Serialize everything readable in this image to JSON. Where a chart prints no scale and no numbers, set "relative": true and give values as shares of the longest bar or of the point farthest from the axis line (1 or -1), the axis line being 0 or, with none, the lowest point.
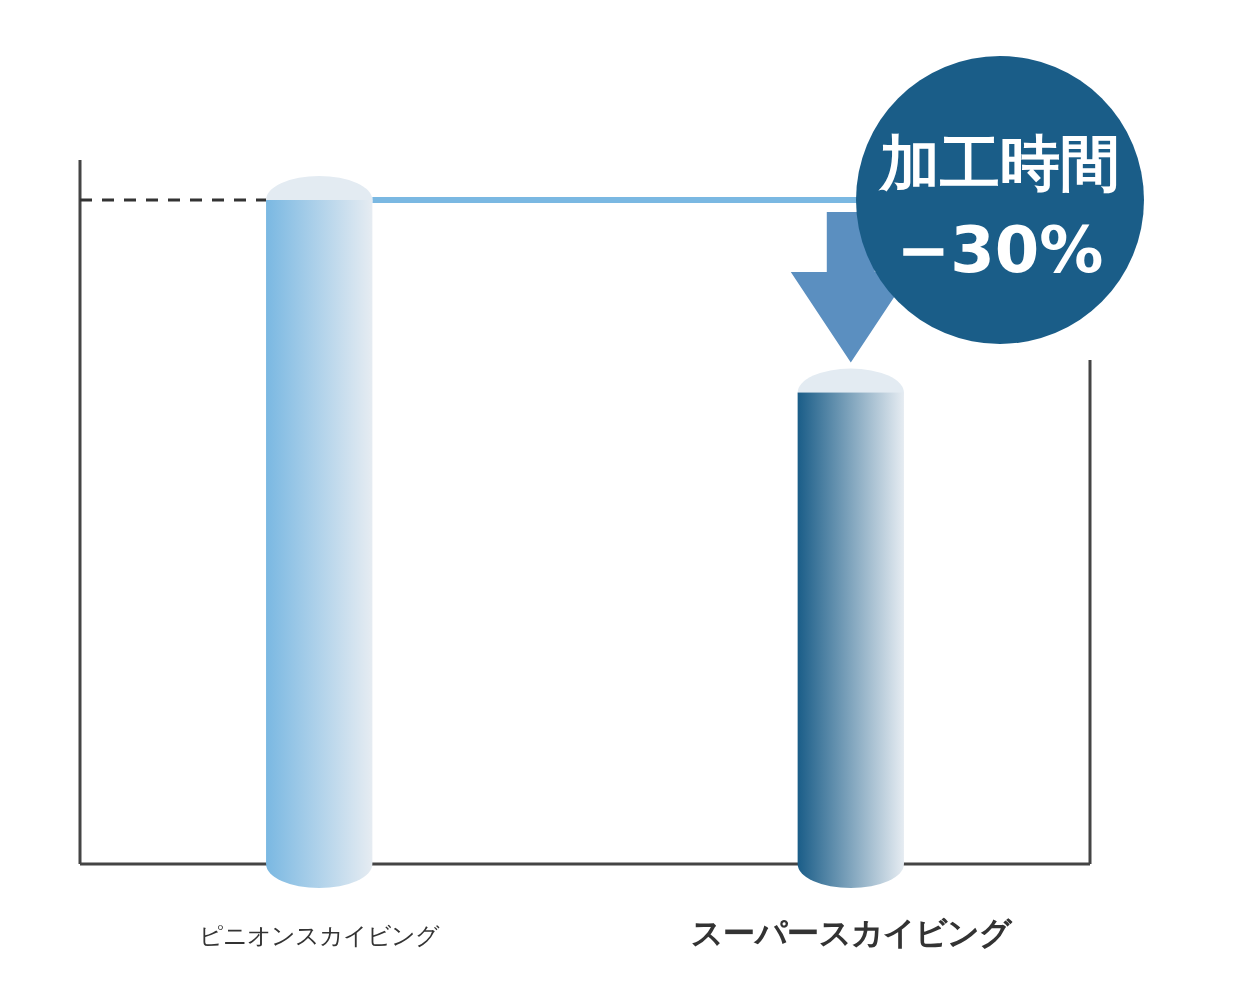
{
  "chart_data": {
    "type": "bar",
    "relative": true,
    "categories": [
      "ピニオンスカイビング",
      "スーパースカイビング"
    ],
    "values": [
      1,
      0.71
    ],
    "colors": [
      "#7ab8e2",
      "#1a5d88"
    ],
    "ref_lines": [
      {
        "axis": "y",
        "value": 1,
        "line_style": "dashed",
        "color": "#333333"
      },
      {
        "axis": "y",
        "value": 1,
        "line_style": "solid",
        "color": "#7ab8e2"
      }
    ],
    "annotations": [
      "加工時間",
      "−30%"
    ]
  }
}
